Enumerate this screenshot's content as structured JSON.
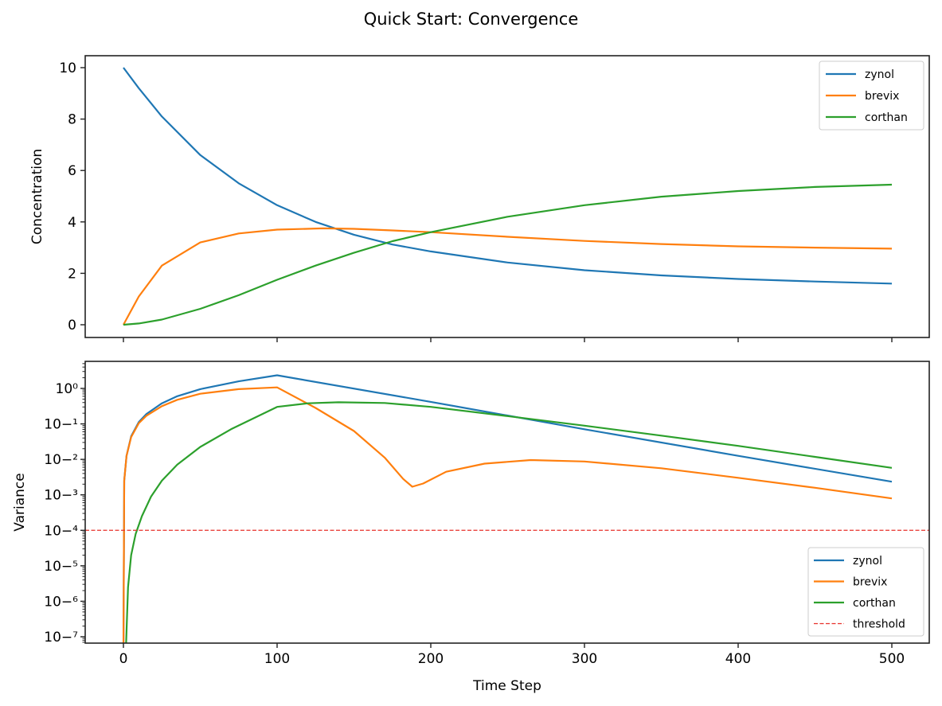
{
  "figure": {
    "title": "Quick Start: Convergence"
  },
  "colors": {
    "zynol": "#1f77b4",
    "brevix": "#ff7f0e",
    "corthan": "#2ca02c",
    "threshold": "#e8302a",
    "axis": "#222222",
    "legend_border": "#cccccc"
  },
  "chart_data": [
    {
      "type": "line",
      "title": "",
      "xlabel": "",
      "ylabel": "Concentration",
      "xlim": [
        -25,
        525
      ],
      "ylim": [
        -0.5,
        10.5
      ],
      "x_ticks": [
        0,
        100,
        200,
        300,
        400,
        500
      ],
      "y_ticks": [
        0,
        2,
        4,
        6,
        8,
        10
      ],
      "y_tick_labels": [
        "0",
        "2",
        "4",
        "6",
        "8",
        "10"
      ],
      "grid": false,
      "legend_position": "upper right",
      "series": [
        {
          "name": "zynol",
          "x": [
            0,
            10,
            25,
            50,
            75,
            100,
            125,
            150,
            175,
            200,
            250,
            300,
            350,
            400,
            450,
            500
          ],
          "values": [
            10,
            9.2,
            8.1,
            6.6,
            5.5,
            4.65,
            4.0,
            3.5,
            3.12,
            2.85,
            2.42,
            2.12,
            1.92,
            1.78,
            1.68,
            1.6
          ]
        },
        {
          "name": "brevix",
          "x": [
            0,
            10,
            25,
            50,
            75,
            100,
            130,
            150,
            175,
            200,
            250,
            300,
            350,
            400,
            450,
            500
          ],
          "values": [
            0,
            1.1,
            2.3,
            3.2,
            3.55,
            3.7,
            3.75,
            3.73,
            3.67,
            3.6,
            3.42,
            3.26,
            3.14,
            3.05,
            3.0,
            2.96
          ]
        },
        {
          "name": "corthan",
          "x": [
            0,
            10,
            25,
            50,
            75,
            100,
            125,
            150,
            175,
            200,
            250,
            300,
            350,
            400,
            450,
            500
          ],
          "values": [
            0,
            0.05,
            0.2,
            0.62,
            1.15,
            1.75,
            2.3,
            2.8,
            3.25,
            3.6,
            4.2,
            4.65,
            4.98,
            5.2,
            5.36,
            5.45
          ]
        }
      ]
    },
    {
      "type": "line",
      "title": "",
      "xlabel": "Time Step",
      "ylabel": "Variance",
      "y_scale": "log",
      "xlim": [
        -25,
        525
      ],
      "ylim": [
        6.5e-08,
        5
      ],
      "x_ticks": [
        0,
        100,
        200,
        300,
        400,
        500
      ],
      "x_tick_labels": [
        "0",
        "100",
        "200",
        "300",
        "400",
        "500"
      ],
      "y_ticks_log10": [
        0,
        -1,
        -2,
        -3,
        -4,
        -5,
        -6,
        -7
      ],
      "grid": false,
      "legend_position": "lower right",
      "threshold": {
        "name": "threshold",
        "value": 0.0001,
        "style": "dashed"
      },
      "series": [
        {
          "name": "zynol",
          "x": [
            0,
            0.5,
            2,
            5,
            10,
            15,
            25,
            35,
            50,
            75,
            100,
            200,
            300,
            400,
            500
          ],
          "log10_values": [
            -7.5,
            -2.6,
            -1.9,
            -1.35,
            -0.95,
            -0.72,
            -0.42,
            -0.22,
            -0.02,
            0.2,
            0.37,
            -0.38,
            -1.15,
            -1.9,
            -2.63
          ]
        },
        {
          "name": "brevix",
          "x": [
            0,
            0.5,
            2,
            5,
            10,
            15,
            25,
            35,
            50,
            75,
            100,
            125,
            150,
            170,
            182,
            188,
            195,
            210,
            235,
            265,
            300,
            350,
            400,
            450,
            500
          ],
          "log10_values": [
            -7.5,
            -2.6,
            -1.9,
            -1.37,
            -0.98,
            -0.77,
            -0.5,
            -0.32,
            -0.15,
            -0.02,
            0.03,
            -0.55,
            -1.2,
            -1.95,
            -2.55,
            -2.77,
            -2.68,
            -2.35,
            -2.12,
            -2.02,
            -2.06,
            -2.25,
            -2.52,
            -2.8,
            -3.1
          ]
        },
        {
          "name": "corthan",
          "x": [
            1.5,
            3,
            5,
            8,
            12,
            18,
            25,
            35,
            50,
            70,
            100,
            120,
            140,
            170,
            200,
            250,
            300,
            350,
            400,
            450,
            500
          ],
          "log10_values": [
            -7.5,
            -5.6,
            -4.7,
            -4.1,
            -3.6,
            -3.05,
            -2.6,
            -2.15,
            -1.65,
            -1.15,
            -0.52,
            -0.42,
            -0.39,
            -0.41,
            -0.52,
            -0.78,
            -1.05,
            -1.33,
            -1.62,
            -1.93,
            -2.24
          ]
        }
      ]
    }
  ],
  "legends": {
    "top": [
      "zynol",
      "brevix",
      "corthan"
    ],
    "bottom": [
      "zynol",
      "brevix",
      "corthan",
      "threshold"
    ]
  }
}
